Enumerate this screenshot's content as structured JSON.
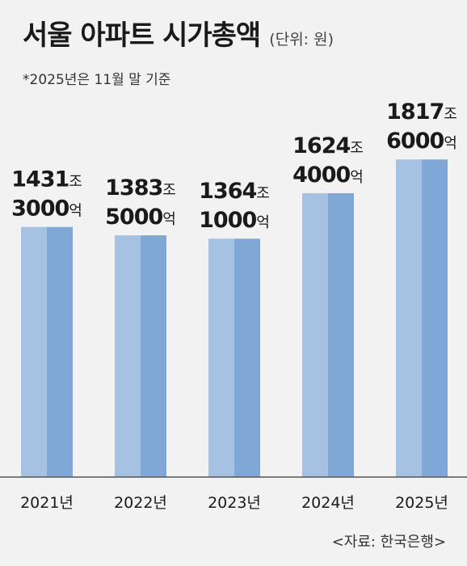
{
  "header": {
    "title": "서울 아파트 시가총액",
    "unit": "(단위: 원)",
    "note": "*2025년은 11월 말 기준"
  },
  "footer": {
    "source": "<자료: 한국은행>"
  },
  "colors": {
    "bar_left": "#a6c2e3",
    "bar_right": "#80a8d6",
    "axis": "#555555",
    "background": "#f2f2f2"
  },
  "chart_data": {
    "type": "bar",
    "categories": [
      "2021년",
      "2022년",
      "2023년",
      "2024년",
      "2025년"
    ],
    "values": [
      1431.3,
      1383.5,
      1364.1,
      1624.4,
      1817.6
    ],
    "value_unit": "조 원",
    "data_labels": [
      [
        "1431조",
        "3000억"
      ],
      [
        "1383조",
        "5000억"
      ],
      [
        "1364조",
        "1000억"
      ],
      [
        "1624조",
        "4000억"
      ],
      [
        "1817조",
        "6000억"
      ]
    ],
    "ylim": [
      0,
      2050
    ],
    "grid": false,
    "legend": "none"
  }
}
